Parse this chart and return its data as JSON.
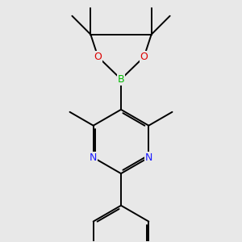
{
  "bg_color": "#e8e8e8",
  "bond_color": "#000000",
  "bond_width": 1.4,
  "atom_colors": {
    "N": "#1a1aff",
    "B": "#00bb00",
    "O": "#dd0000"
  },
  "font_size_atom": 9
}
